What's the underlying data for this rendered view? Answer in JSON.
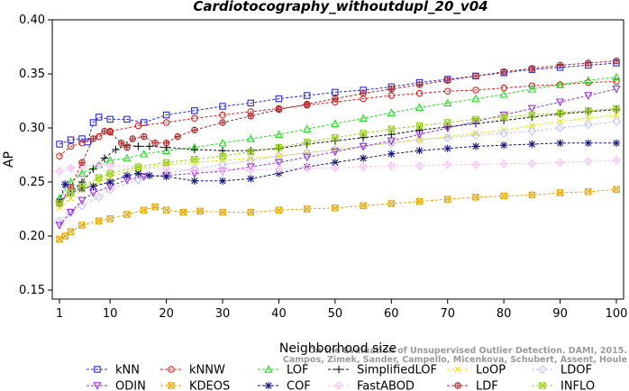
{
  "chart_data": {
    "type": "line",
    "title": "Cardiotocography_withoutdupl_20_v04",
    "xlabel": "Neighborhood size",
    "ylabel": "AP",
    "xlim": [
      1,
      100
    ],
    "ylim": [
      0.15,
      0.4
    ],
    "xticks": [
      1,
      10,
      20,
      30,
      40,
      50,
      60,
      70,
      80,
      90,
      100
    ],
    "yticks": [
      0.15,
      0.2,
      0.25,
      0.3,
      0.35,
      0.4
    ],
    "xtick_labels": [
      "1",
      "10",
      "20",
      "30",
      "40",
      "50",
      "60",
      "70",
      "80",
      "90",
      "100"
    ],
    "ytick_labels": [
      "0.15",
      "0.20",
      "0.25",
      "0.30",
      "0.35",
      "0.40"
    ],
    "grid": false,
    "legend_position": "bottom",
    "credit": [
      "On the Evaluation of Unsupervised Outlier Detection. DAMI, 2015.",
      "Campos, Zimek, Sander, Campello, Micenkova, Schubert, Assent, Houle"
    ],
    "series": [
      {
        "name": "kNN",
        "color": "#2a2adf",
        "marker": "square",
        "points": [
          [
            1,
            0.285
          ],
          [
            3,
            0.289
          ],
          [
            5,
            0.29
          ],
          [
            6,
            0.287
          ],
          [
            7,
            0.305
          ],
          [
            8,
            0.31
          ],
          [
            10,
            0.308
          ],
          [
            13,
            0.308
          ],
          [
            16,
            0.305
          ],
          [
            20,
            0.312
          ],
          [
            25,
            0.316
          ],
          [
            30,
            0.32
          ],
          [
            35,
            0.323
          ],
          [
            40,
            0.327
          ],
          [
            45,
            0.33
          ],
          [
            50,
            0.333
          ],
          [
            55,
            0.335
          ],
          [
            60,
            0.338
          ],
          [
            65,
            0.342
          ],
          [
            70,
            0.345
          ],
          [
            75,
            0.348
          ],
          [
            80,
            0.351
          ],
          [
            85,
            0.354
          ],
          [
            90,
            0.356
          ],
          [
            95,
            0.358
          ],
          [
            100,
            0.36
          ]
        ]
      },
      {
        "name": "kNNW",
        "color": "#e02020",
        "marker": "circle",
        "points": [
          [
            1,
            0.274
          ],
          [
            3,
            0.283
          ],
          [
            5,
            0.286
          ],
          [
            8,
            0.292
          ],
          [
            10,
            0.297
          ],
          [
            15,
            0.302
          ],
          [
            20,
            0.305
          ],
          [
            25,
            0.309
          ],
          [
            30,
            0.312
          ],
          [
            35,
            0.315
          ],
          [
            40,
            0.318
          ],
          [
            45,
            0.321
          ],
          [
            50,
            0.324
          ],
          [
            55,
            0.327
          ],
          [
            60,
            0.33
          ],
          [
            65,
            0.332
          ],
          [
            70,
            0.334
          ],
          [
            75,
            0.335
          ],
          [
            80,
            0.337
          ],
          [
            85,
            0.339
          ],
          [
            90,
            0.34
          ],
          [
            95,
            0.342
          ],
          [
            100,
            0.343
          ]
        ]
      },
      {
        "name": "LOF",
        "color": "#22dd22",
        "marker": "triangle-up",
        "points": [
          [
            1,
            0.235
          ],
          [
            3,
            0.25
          ],
          [
            5,
            0.258
          ],
          [
            8,
            0.266
          ],
          [
            10,
            0.27
          ],
          [
            13,
            0.272
          ],
          [
            16,
            0.276
          ],
          [
            20,
            0.279
          ],
          [
            25,
            0.282
          ],
          [
            30,
            0.286
          ],
          [
            35,
            0.29
          ],
          [
            40,
            0.294
          ],
          [
            45,
            0.299
          ],
          [
            50,
            0.304
          ],
          [
            55,
            0.309
          ],
          [
            60,
            0.314
          ],
          [
            65,
            0.319
          ],
          [
            70,
            0.323
          ],
          [
            75,
            0.327
          ],
          [
            80,
            0.331
          ],
          [
            85,
            0.336
          ],
          [
            90,
            0.34
          ],
          [
            95,
            0.344
          ],
          [
            100,
            0.347
          ]
        ]
      },
      {
        "name": "SimplifiedLOF",
        "color": "#111111",
        "marker": "plus",
        "points": [
          [
            1,
            0.232
          ],
          [
            3,
            0.24
          ],
          [
            5,
            0.25
          ],
          [
            7,
            0.262
          ],
          [
            9,
            0.272
          ],
          [
            11,
            0.28
          ],
          [
            13,
            0.284
          ],
          [
            15,
            0.283
          ],
          [
            17,
            0.283
          ],
          [
            20,
            0.282
          ],
          [
            25,
            0.28
          ],
          [
            30,
            0.279
          ],
          [
            35,
            0.279
          ],
          [
            40,
            0.281
          ],
          [
            45,
            0.285
          ],
          [
            50,
            0.288
          ],
          [
            55,
            0.291
          ],
          [
            60,
            0.294
          ],
          [
            65,
            0.298
          ],
          [
            70,
            0.301
          ],
          [
            75,
            0.304
          ],
          [
            80,
            0.307
          ],
          [
            85,
            0.31
          ],
          [
            90,
            0.313
          ],
          [
            95,
            0.315
          ],
          [
            100,
            0.317
          ]
        ]
      },
      {
        "name": "LoOP",
        "color": "#e8e800",
        "marker": "x",
        "points": [
          [
            1,
            0.226
          ],
          [
            3,
            0.235
          ],
          [
            5,
            0.243
          ],
          [
            8,
            0.25
          ],
          [
            10,
            0.255
          ],
          [
            15,
            0.262
          ],
          [
            20,
            0.266
          ],
          [
            25,
            0.268
          ],
          [
            30,
            0.27
          ],
          [
            35,
            0.272
          ],
          [
            40,
            0.274
          ],
          [
            45,
            0.277
          ],
          [
            50,
            0.28
          ],
          [
            55,
            0.283
          ],
          [
            60,
            0.286
          ],
          [
            65,
            0.289
          ],
          [
            70,
            0.292
          ],
          [
            75,
            0.295
          ],
          [
            80,
            0.298
          ],
          [
            85,
            0.302
          ],
          [
            90,
            0.306
          ],
          [
            95,
            0.309
          ],
          [
            100,
            0.312
          ]
        ]
      },
      {
        "name": "LDOF",
        "color": "#c2c2ff",
        "marker": "diamond",
        "points": [
          [
            1,
            0.214
          ],
          [
            3,
            0.222
          ],
          [
            5,
            0.228
          ],
          [
            8,
            0.236
          ],
          [
            10,
            0.243
          ],
          [
            15,
            0.252
          ],
          [
            20,
            0.258
          ],
          [
            25,
            0.262
          ],
          [
            30,
            0.266
          ],
          [
            35,
            0.27
          ],
          [
            40,
            0.274
          ],
          [
            45,
            0.277
          ],
          [
            50,
            0.28
          ],
          [
            55,
            0.283
          ],
          [
            60,
            0.286
          ],
          [
            65,
            0.289
          ],
          [
            70,
            0.291
          ],
          [
            75,
            0.293
          ],
          [
            80,
            0.295
          ],
          [
            85,
            0.297
          ],
          [
            90,
            0.3
          ],
          [
            95,
            0.303
          ],
          [
            100,
            0.306
          ]
        ]
      },
      {
        "name": "ODIN",
        "color": "#9a2ee6",
        "marker": "triangle-down",
        "points": [
          [
            1,
            0.21
          ],
          [
            3,
            0.222
          ],
          [
            5,
            0.233
          ],
          [
            7,
            0.24
          ],
          [
            10,
            0.246
          ],
          [
            13,
            0.252
          ],
          [
            16,
            0.255
          ],
          [
            20,
            0.256
          ],
          [
            25,
            0.258
          ],
          [
            30,
            0.26
          ],
          [
            35,
            0.264
          ],
          [
            40,
            0.268
          ],
          [
            45,
            0.273
          ],
          [
            50,
            0.278
          ],
          [
            55,
            0.283
          ],
          [
            60,
            0.288
          ],
          [
            65,
            0.294
          ],
          [
            70,
            0.3
          ],
          [
            75,
            0.306
          ],
          [
            80,
            0.312
          ],
          [
            85,
            0.318
          ],
          [
            90,
            0.324
          ],
          [
            95,
            0.33
          ],
          [
            100,
            0.336
          ]
        ]
      },
      {
        "name": "KDEOS",
        "color": "#e8a500",
        "marker": "square-x",
        "points": [
          [
            1,
            0.197
          ],
          [
            2,
            0.2
          ],
          [
            3,
            0.204
          ],
          [
            5,
            0.21
          ],
          [
            8,
            0.214
          ],
          [
            10,
            0.216
          ],
          [
            13,
            0.22
          ],
          [
            16,
            0.224
          ],
          [
            18,
            0.227
          ],
          [
            20,
            0.224
          ],
          [
            23,
            0.222
          ],
          [
            26,
            0.223
          ],
          [
            30,
            0.222
          ],
          [
            35,
            0.222
          ],
          [
            40,
            0.224
          ],
          [
            45,
            0.225
          ],
          [
            50,
            0.226
          ],
          [
            55,
            0.228
          ],
          [
            60,
            0.23
          ],
          [
            65,
            0.232
          ],
          [
            70,
            0.234
          ],
          [
            75,
            0.236
          ],
          [
            80,
            0.237
          ],
          [
            85,
            0.238
          ],
          [
            90,
            0.24
          ],
          [
            95,
            0.241
          ],
          [
            100,
            0.243
          ]
        ]
      },
      {
        "name": "COF",
        "color": "#16167a",
        "marker": "star",
        "points": [
          [
            1,
            0.232
          ],
          [
            2,
            0.248
          ],
          [
            3,
            0.24
          ],
          [
            5,
            0.244
          ],
          [
            7,
            0.246
          ],
          [
            10,
            0.25
          ],
          [
            13,
            0.256
          ],
          [
            15,
            0.258
          ],
          [
            17,
            0.256
          ],
          [
            20,
            0.255
          ],
          [
            25,
            0.251
          ],
          [
            30,
            0.251
          ],
          [
            35,
            0.253
          ],
          [
            40,
            0.258
          ],
          [
            45,
            0.264
          ],
          [
            50,
            0.268
          ],
          [
            55,
            0.272
          ],
          [
            60,
            0.276
          ],
          [
            65,
            0.279
          ],
          [
            70,
            0.281
          ],
          [
            75,
            0.283
          ],
          [
            80,
            0.284
          ],
          [
            85,
            0.285
          ],
          [
            90,
            0.286
          ],
          [
            95,
            0.286
          ],
          [
            100,
            0.286
          ]
        ]
      },
      {
        "name": "FastABOD",
        "color": "#f6c6f6",
        "marker": "diamond-plus",
        "points": [
          [
            1,
            0.26
          ],
          [
            3,
            0.263
          ],
          [
            5,
            0.265
          ],
          [
            8,
            0.266
          ],
          [
            10,
            0.265
          ],
          [
            15,
            0.264
          ],
          [
            20,
            0.262
          ],
          [
            25,
            0.261
          ],
          [
            30,
            0.261
          ],
          [
            35,
            0.261
          ],
          [
            40,
            0.262
          ],
          [
            45,
            0.263
          ],
          [
            50,
            0.263
          ],
          [
            55,
            0.264
          ],
          [
            60,
            0.265
          ],
          [
            65,
            0.265
          ],
          [
            70,
            0.266
          ],
          [
            75,
            0.266
          ],
          [
            80,
            0.267
          ],
          [
            85,
            0.267
          ],
          [
            90,
            0.268
          ],
          [
            95,
            0.269
          ],
          [
            100,
            0.27
          ]
        ]
      },
      {
        "name": "LDF",
        "color": "#b02828",
        "marker": "circle-plus",
        "points": [
          [
            1,
            0.23
          ],
          [
            3,
            0.245
          ],
          [
            5,
            0.268
          ],
          [
            7,
            0.29
          ],
          [
            9,
            0.297
          ],
          [
            10,
            0.296
          ],
          [
            12,
            0.286
          ],
          [
            13,
            0.282
          ],
          [
            14,
            0.29
          ],
          [
            16,
            0.292
          ],
          [
            18,
            0.286
          ],
          [
            20,
            0.286
          ],
          [
            22,
            0.292
          ],
          [
            25,
            0.298
          ],
          [
            30,
            0.305
          ],
          [
            35,
            0.311
          ],
          [
            40,
            0.317
          ],
          [
            45,
            0.322
          ],
          [
            50,
            0.327
          ],
          [
            55,
            0.332
          ],
          [
            60,
            0.336
          ],
          [
            65,
            0.34
          ],
          [
            70,
            0.344
          ],
          [
            75,
            0.348
          ],
          [
            80,
            0.352
          ],
          [
            85,
            0.355
          ],
          [
            90,
            0.358
          ],
          [
            95,
            0.36
          ],
          [
            100,
            0.362
          ]
        ]
      },
      {
        "name": "INFLO",
        "color": "#9ad020",
        "marker": "square-cross",
        "points": [
          [
            1,
            0.23
          ],
          [
            3,
            0.24
          ],
          [
            5,
            0.246
          ],
          [
            8,
            0.254
          ],
          [
            10,
            0.258
          ],
          [
            15,
            0.264
          ],
          [
            20,
            0.268
          ],
          [
            25,
            0.271
          ],
          [
            30,
            0.274
          ],
          [
            35,
            0.278
          ],
          [
            40,
            0.282
          ],
          [
            45,
            0.287
          ],
          [
            50,
            0.291
          ],
          [
            55,
            0.295
          ],
          [
            60,
            0.299
          ],
          [
            65,
            0.302
          ],
          [
            70,
            0.305
          ],
          [
            75,
            0.308
          ],
          [
            80,
            0.31
          ],
          [
            85,
            0.312
          ],
          [
            90,
            0.314
          ],
          [
            95,
            0.316
          ],
          [
            100,
            0.318
          ]
        ]
      }
    ]
  }
}
